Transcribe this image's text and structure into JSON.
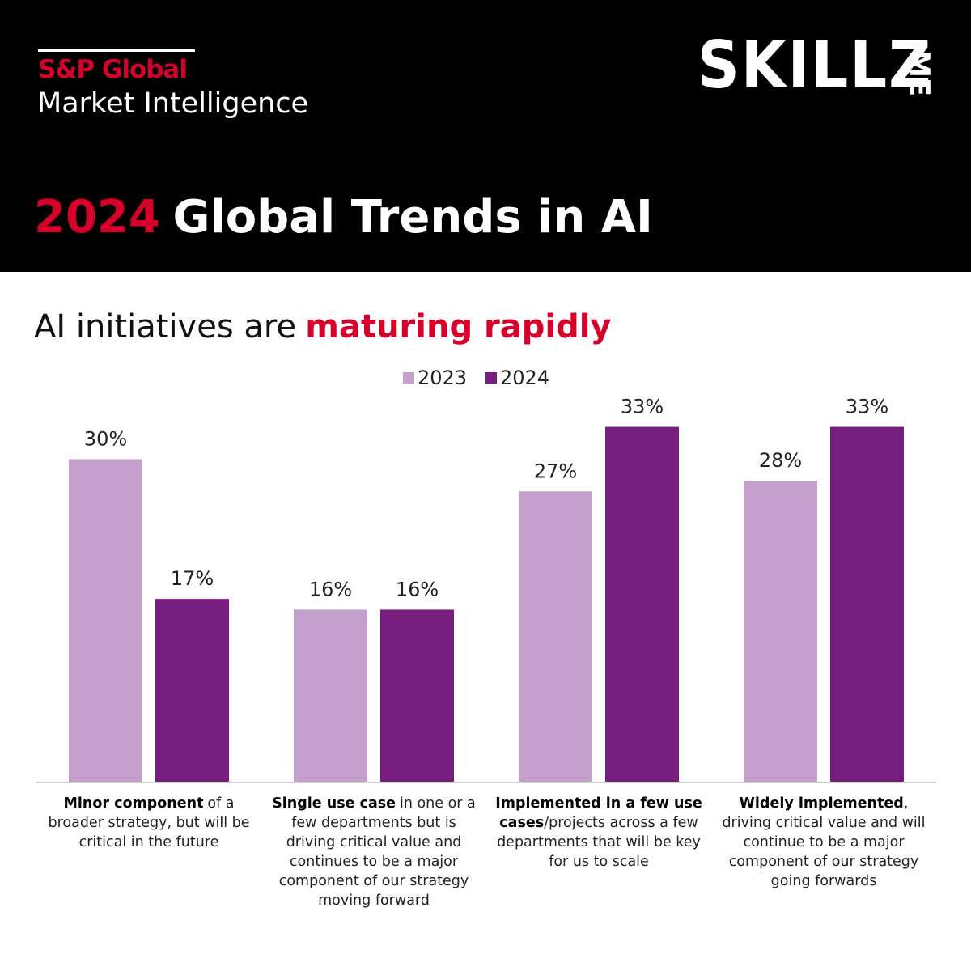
{
  "header": {
    "brand": "S&P Global",
    "division": "Market Intelligence",
    "logo_main": "SKILLZ",
    "logo_side": "ME"
  },
  "chart_data": {
    "type": "bar",
    "title": [
      {
        "text": "2024",
        "color": "#d6002a"
      },
      {
        "text": "Global Trends in AI"
      }
    ],
    "subtitle": [
      {
        "text": "AI initiatives are"
      },
      {
        "text": "maturing rapidly",
        "color": "#d6002a",
        "bold": true
      }
    ],
    "categories": [
      [
        {
          "text": "Minor component",
          "bold": true
        },
        {
          "text": "of a broader strategy, but will be critical in the future"
        }
      ],
      [
        {
          "text": "Single use case",
          "bold": true
        },
        {
          "text": "in one or a few departments but is driving critical value and continues to be a major component of our strategy moving forward"
        }
      ],
      [
        {
          "text": "Implemented in a few use cases",
          "bold": true
        },
        {
          "text": "/projects across a few departments that will be key for us to scale",
          "nospace": true
        }
      ],
      [
        {
          "text": "Widely implemented",
          "bold": true
        },
        {
          "text": ", driving critical  value and will continue to be a major component of our strategy going forwards",
          "nospace": true
        }
      ]
    ],
    "series": [
      {
        "name": "2023",
        "color": "#c49fcb",
        "values": [
          30,
          16,
          27,
          28
        ],
        "value_labels": [
          "30%",
          "16%",
          "27%",
          "28%"
        ]
      },
      {
        "name": "2024",
        "color": "#781e7e",
        "values": [
          17,
          16,
          33,
          33
        ],
        "value_labels": [
          "17%",
          "16%",
          "33%",
          "33%"
        ]
      }
    ],
    "ylim": [
      0,
      35
    ]
  }
}
